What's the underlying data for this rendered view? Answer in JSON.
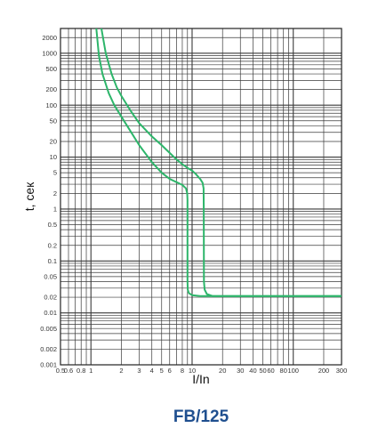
{
  "chart_data": {
    "type": "line",
    "title": "FB/125",
    "xlabel": "I/In",
    "ylabel": "t, сек",
    "x_scale": "log",
    "y_scale": "log",
    "xlim": [
      0.5,
      300
    ],
    "ylim": [
      0.001,
      3000
    ],
    "grid": true,
    "x_tick_labels": [
      {
        "value": 0.5,
        "label": "0.5"
      },
      {
        "value": 0.6,
        "label": "0.6"
      },
      {
        "value": 0.8,
        "label": "0.8"
      },
      {
        "value": 1,
        "label": "1"
      },
      {
        "value": 2,
        "label": "2"
      },
      {
        "value": 3,
        "label": "3"
      },
      {
        "value": 4,
        "label": "4"
      },
      {
        "value": 5,
        "label": "5"
      },
      {
        "value": 6,
        "label": "6"
      },
      {
        "value": 8,
        "label": "8"
      },
      {
        "value": 10,
        "label": "10"
      },
      {
        "value": 20,
        "label": "20"
      },
      {
        "value": 30,
        "label": "30"
      },
      {
        "value": 40,
        "label": "40"
      },
      {
        "value": 50,
        "label": "50"
      },
      {
        "value": 60,
        "label": "60"
      },
      {
        "value": 80,
        "label": "80"
      },
      {
        "value": 100,
        "label": "100"
      },
      {
        "value": 200,
        "label": "200"
      },
      {
        "value": 300,
        "label": "300"
      }
    ],
    "y_tick_labels": [
      {
        "value": 2000,
        "label": "2000"
      },
      {
        "value": 1000,
        "label": "1000"
      },
      {
        "value": 500,
        "label": "500"
      },
      {
        "value": 200,
        "label": "200"
      },
      {
        "value": 100,
        "label": "100"
      },
      {
        "value": 50,
        "label": "50"
      },
      {
        "value": 20,
        "label": "20"
      },
      {
        "value": 10,
        "label": "10"
      },
      {
        "value": 5,
        "label": "5"
      },
      {
        "value": 2,
        "label": "2"
      },
      {
        "value": 1,
        "label": "1"
      },
      {
        "value": 0.5,
        "label": "0.5"
      },
      {
        "value": 0.2,
        "label": "0.2"
      },
      {
        "value": 0.1,
        "label": "0.1"
      },
      {
        "value": 0.05,
        "label": "0.05"
      },
      {
        "value": 0.02,
        "label": "0.02"
      },
      {
        "value": 0.01,
        "label": "0.01"
      },
      {
        "value": 0.005,
        "label": "0.005"
      },
      {
        "value": 0.002,
        "label": "0.002"
      },
      {
        "value": 0.001,
        "label": "0.001"
      }
    ],
    "series": [
      {
        "color": "#2db56a",
        "x": [
          1.13,
          1.2,
          1.3,
          1.5,
          1.7,
          2.0,
          2.5,
          3.0,
          4.0,
          5.0,
          6.0,
          7.0,
          8.0,
          8.7,
          8.95,
          9.0,
          9.0,
          9.0,
          9.05,
          9.3,
          10.0,
          12.0,
          300
        ],
        "y": [
          3000,
          900,
          400,
          170,
          100,
          60,
          30,
          17,
          8,
          5,
          3.8,
          3.3,
          2.9,
          2.5,
          2.0,
          1.5,
          0.5,
          0.04,
          0.028,
          0.024,
          0.022,
          0.021,
          0.021
        ]
      },
      {
        "color": "#2db56a",
        "x": [
          1.27,
          1.4,
          1.6,
          1.8,
          2.0,
          2.5,
          3.0,
          4.0,
          5.0,
          6.0,
          7.0,
          8.0,
          9.0,
          10.0,
          11.0,
          12.0,
          12.7,
          13.0,
          13.05,
          13.1,
          13.3,
          14.0,
          16.0,
          300
        ],
        "y": [
          3000,
          1000,
          400,
          220,
          150,
          75,
          45,
          25,
          17,
          12,
          9,
          7.3,
          6.2,
          5.5,
          4.6,
          3.8,
          3.2,
          2.5,
          1.0,
          0.04,
          0.028,
          0.023,
          0.021,
          0.021
        ]
      }
    ]
  }
}
